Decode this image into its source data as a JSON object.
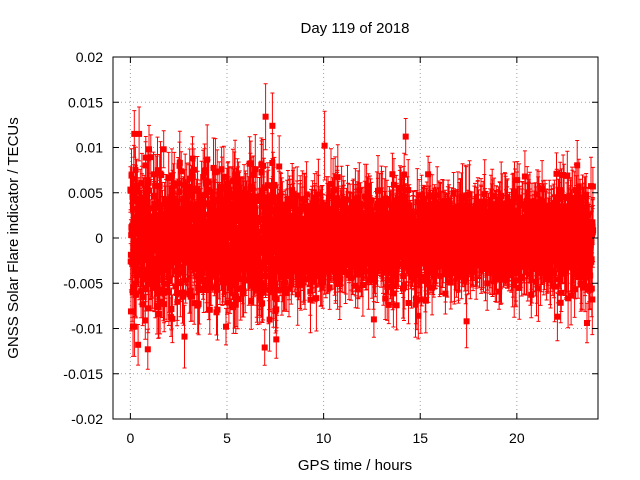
{
  "chart_data": {
    "type": "scatter",
    "title": "Day 119 of 2018",
    "xlabel": "GPS time / hours",
    "ylabel": "GNSS Solar Flare indicator / TECUs",
    "xlim": [
      -0.9,
      24.2
    ],
    "ylim": [
      -0.02,
      0.02
    ],
    "x_ticks": [
      0,
      5,
      10,
      15,
      20
    ],
    "x_tick_labels": [
      "0",
      "5",
      "10",
      "15",
      "20"
    ],
    "y_ticks": [
      -0.02,
      -0.015,
      -0.01,
      -0.005,
      0,
      0.005,
      0.01,
      0.015,
      0.02
    ],
    "y_tick_labels": [
      "-0.02",
      "-0.015",
      "-0.01",
      "-0.005",
      "0",
      "0.005",
      "0.01",
      "0.015",
      "0.02"
    ],
    "grid": true,
    "series": [
      {
        "name": "Solar flare indicator",
        "color": "#ff0000",
        "marker": "square",
        "error_bars": true,
        "x_start": 0.0,
        "x_end": 23.95,
        "x_step": 0.0083,
        "approx_std": [
          {
            "x": 0.0,
            "std": 0.0048
          },
          {
            "x": 3.0,
            "std": 0.0044
          },
          {
            "x": 6.5,
            "std": 0.0046
          },
          {
            "x": 8.5,
            "std": 0.004
          },
          {
            "x": 11.0,
            "std": 0.0026
          },
          {
            "x": 13.0,
            "std": 0.003
          },
          {
            "x": 14.5,
            "std": 0.0036
          },
          {
            "x": 17.0,
            "std": 0.0027
          },
          {
            "x": 20.0,
            "std": 0.003
          },
          {
            "x": 22.5,
            "std": 0.0037
          },
          {
            "x": 24.0,
            "std": 0.004
          }
        ],
        "approx_error": 0.0028,
        "notable_points": [
          {
            "x": 0.2,
            "y": 0.0115
          },
          {
            "x": 0.45,
            "y": 0.0115
          },
          {
            "x": 0.4,
            "y": -0.0118
          },
          {
            "x": 0.9,
            "y": -0.0123
          },
          {
            "x": 2.8,
            "y": -0.0109
          },
          {
            "x": 7.0,
            "y": 0.0134
          },
          {
            "x": 7.35,
            "y": 0.0124
          },
          {
            "x": 6.95,
            "y": -0.0121
          },
          {
            "x": 7.55,
            "y": -0.0112
          },
          {
            "x": 10.05,
            "y": 0.0102
          },
          {
            "x": 14.25,
            "y": 0.0112
          },
          {
            "x": 12.6,
            "y": -0.009
          },
          {
            "x": 14.9,
            "y": -0.0086
          },
          {
            "x": 17.4,
            "y": -0.0092
          },
          {
            "x": 22.1,
            "y": -0.0087
          }
        ]
      }
    ]
  }
}
